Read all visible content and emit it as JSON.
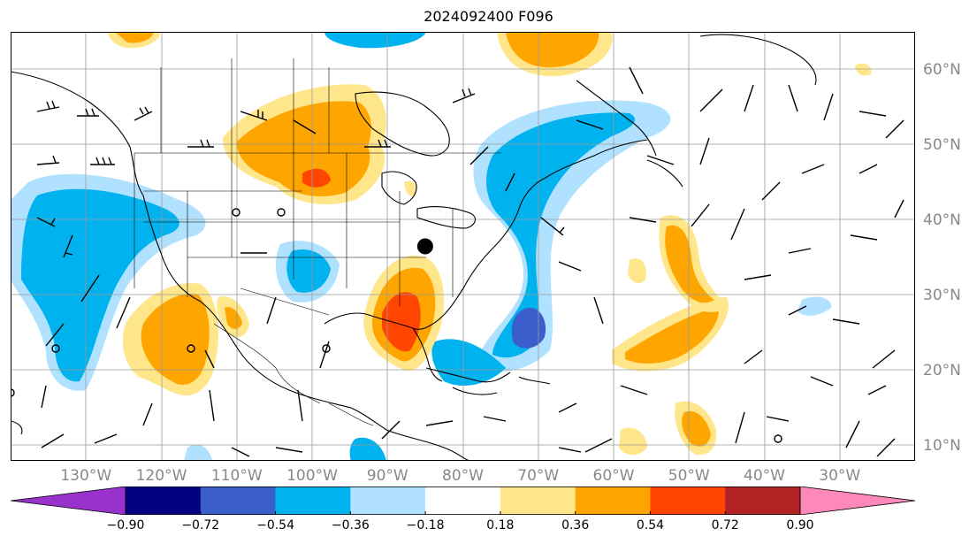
{
  "title": "2024092400 F096",
  "lon_labels": [
    {
      "text": "130°W",
      "lon": -130
    },
    {
      "text": "120°W",
      "lon": -120
    },
    {
      "text": "110°W",
      "lon": -110
    },
    {
      "text": "100°W",
      "lon": -100
    },
    {
      "text": "90°W",
      "lon": -90
    },
    {
      "text": "80°W",
      "lon": -80
    },
    {
      "text": "70°W",
      "lon": -70
    },
    {
      "text": "60°W",
      "lon": -60
    },
    {
      "text": "50°W",
      "lon": -50
    },
    {
      "text": "40°W",
      "lon": -40
    },
    {
      "text": "30°W",
      "lon": -30
    }
  ],
  "lat_labels": [
    {
      "text": "60°N",
      "lat": 60
    },
    {
      "text": "50°N",
      "lat": 50
    },
    {
      "text": "40°N",
      "lat": 40
    },
    {
      "text": "30°N",
      "lat": 30
    },
    {
      "text": "20°N",
      "lat": 20
    },
    {
      "text": "10°N",
      "lat": 10
    }
  ],
  "map_extent": {
    "lon_min": -140,
    "lon_max": -20,
    "lat_min": 8,
    "lat_max": 65
  },
  "colorbar": {
    "ticks": [
      "−0.90",
      "−0.72",
      "−0.54",
      "−0.36",
      "−0.18",
      "0.18",
      "0.36",
      "0.54",
      "0.72",
      "0.90"
    ],
    "colors": [
      "#9932cc",
      "#000080",
      "#3a5fcd",
      "#00b2ee",
      "#b0e2ff",
      "#ffffff",
      "#ffe68a",
      "#ffa500",
      "#ff4500",
      "#b22222",
      "#ff88bb"
    ]
  },
  "marker": {
    "lon": -85,
    "lat": 36.5
  }
}
